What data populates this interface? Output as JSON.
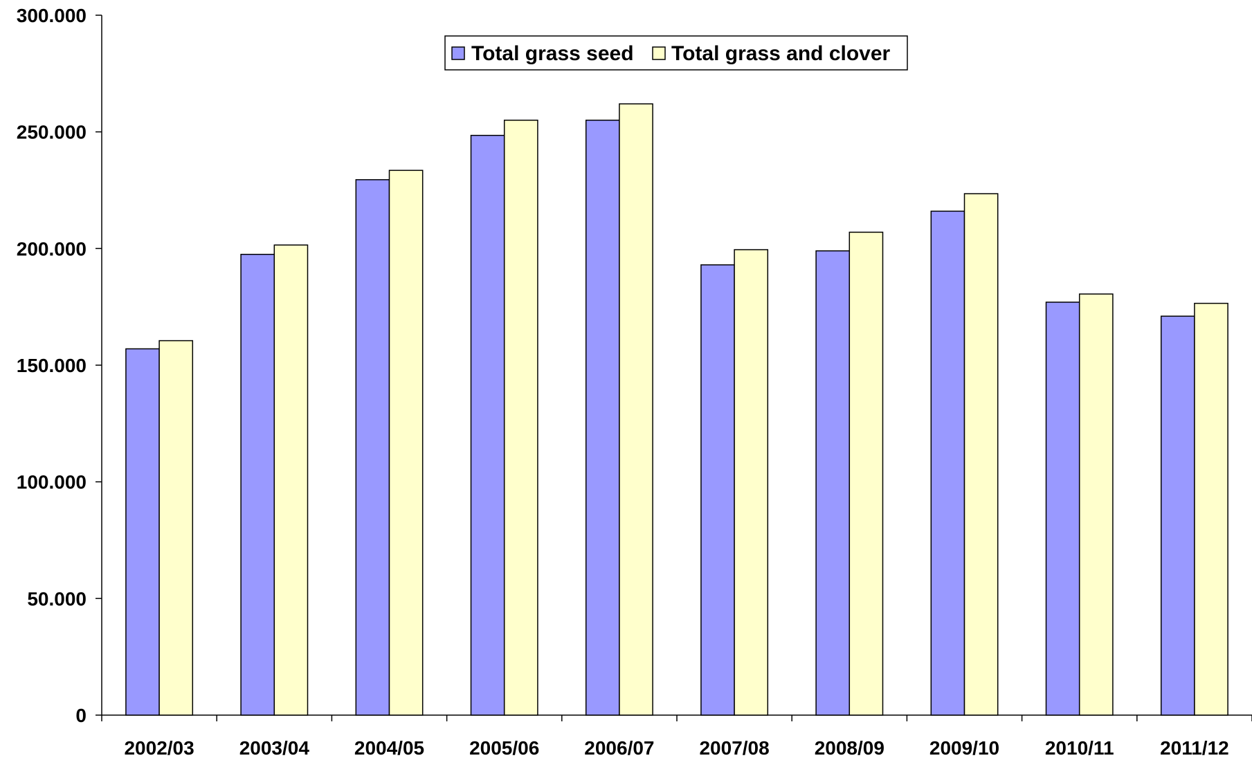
{
  "chart_data": {
    "type": "bar",
    "title": "",
    "xlabel": "",
    "ylabel": "",
    "categories": [
      "2002/03",
      "2003/04",
      "2004/05",
      "2005/06",
      "2006/07",
      "2007/08",
      "2008/09",
      "2009/10",
      "2010/11",
      "2011/12"
    ],
    "series": [
      {
        "name": "Total grass seed",
        "color": "#9999ff",
        "values": [
          157000,
          197500,
          229500,
          248500,
          255000,
          193000,
          199000,
          216000,
          177000,
          171000
        ]
      },
      {
        "name": "Total grass and clover",
        "color": "#ffffcc",
        "values": [
          160500,
          201500,
          233500,
          255000,
          262000,
          199500,
          207000,
          223500,
          180500,
          176500
        ]
      }
    ],
    "ylim": [
      0,
      300000
    ],
    "yticks": [
      "0",
      "50.000",
      "100.000",
      "150.000",
      "200.000",
      "250.000",
      "300.000"
    ],
    "grid": false,
    "legend_position": "top-center"
  }
}
